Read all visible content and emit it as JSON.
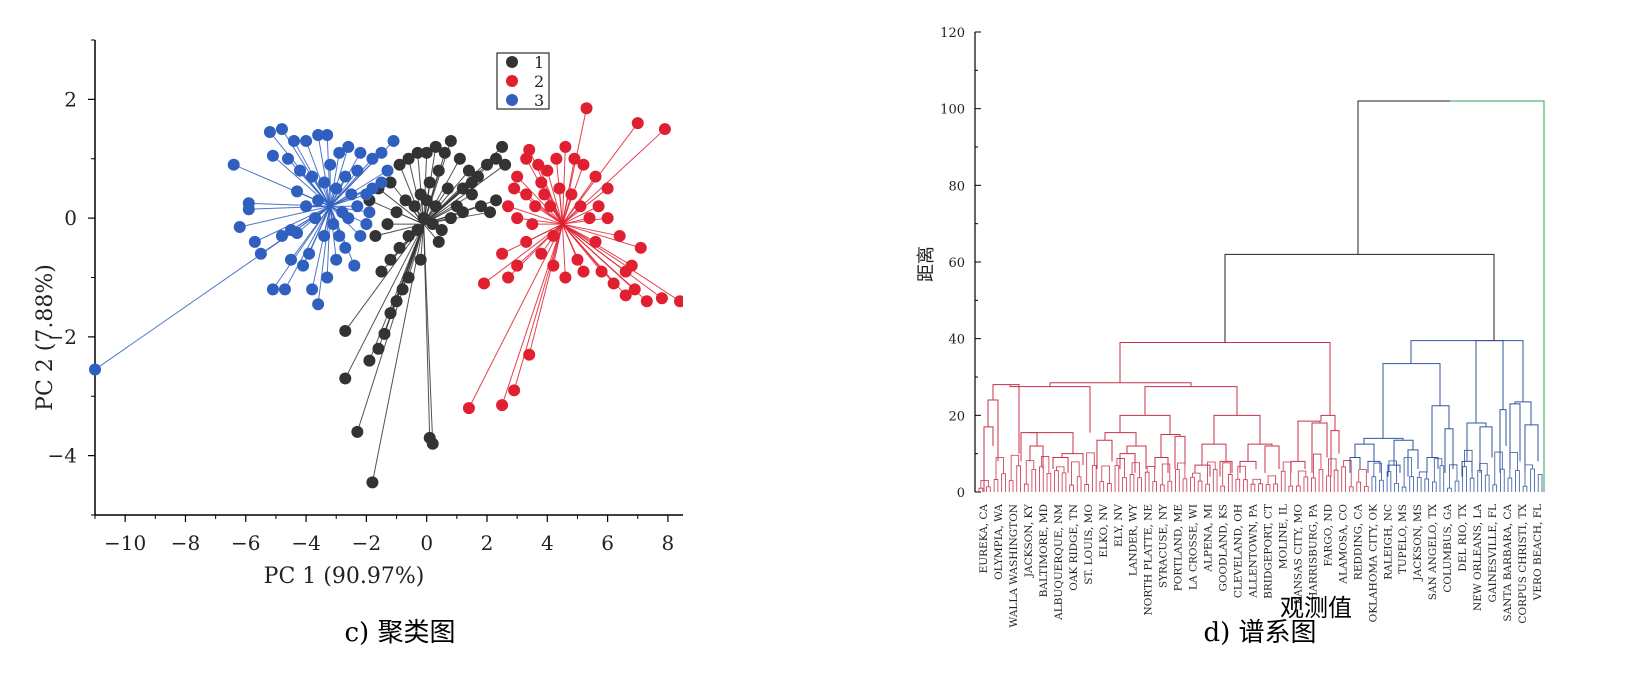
{
  "chart_data": [
    {
      "type": "scatter",
      "caption": "c) 聚类图",
      "xlabel": "PC 1 (90.97%)",
      "ylabel": "PC 2 (7.88%)",
      "xlim": [
        -11,
        8.5
      ],
      "ylim": [
        -5,
        3
      ],
      "xticks": [
        -10,
        -8,
        -6,
        -4,
        -2,
        0,
        2,
        4,
        6,
        8
      ],
      "yticks": [
        -4,
        -2,
        0,
        2
      ],
      "legend_position": "top-center",
      "grid": false,
      "colors": {
        "1": "#333333",
        "2": "#e02030",
        "3": "#2f5fbf"
      },
      "series": [
        {
          "name": "1",
          "color": "#333333",
          "centroid": [
            -0.1,
            -0.1
          ],
          "points": [
            [
              -1.8,
              -4.45
            ],
            [
              -2.3,
              -3.6
            ],
            [
              -2.7,
              -2.7
            ],
            [
              -2.7,
              -1.9
            ],
            [
              -1.9,
              -2.4
            ],
            [
              -1.6,
              -2.2
            ],
            [
              -1.4,
              -1.95
            ],
            [
              -1.2,
              -1.6
            ],
            [
              -1.0,
              -1.4
            ],
            [
              -0.8,
              -1.2
            ],
            [
              -0.6,
              -1.0
            ],
            [
              -0.2,
              -0.7
            ],
            [
              0.1,
              -3.7
            ],
            [
              0.2,
              -3.8
            ],
            [
              0.4,
              -0.4
            ],
            [
              -1.5,
              -0.9
            ],
            [
              -1.2,
              -0.7
            ],
            [
              -0.9,
              -0.5
            ],
            [
              -0.6,
              -0.3
            ],
            [
              -1.7,
              -0.3
            ],
            [
              -1.3,
              -0.1
            ],
            [
              -1.0,
              0.1
            ],
            [
              -0.7,
              0.3
            ],
            [
              -1.9,
              0.3
            ],
            [
              -1.6,
              0.5
            ],
            [
              -1.2,
              0.6
            ],
            [
              -0.9,
              0.9
            ],
            [
              -0.6,
              1.0
            ],
            [
              -0.3,
              1.1
            ],
            [
              0.0,
              1.1
            ],
            [
              0.3,
              1.2
            ],
            [
              0.6,
              1.1
            ],
            [
              0.8,
              1.3
            ],
            [
              1.1,
              1.0
            ],
            [
              1.4,
              0.8
            ],
            [
              1.7,
              0.7
            ],
            [
              2.0,
              0.9
            ],
            [
              2.3,
              1.0
            ],
            [
              2.5,
              1.2
            ],
            [
              2.6,
              0.9
            ],
            [
              1.2,
              0.5
            ],
            [
              1.5,
              0.4
            ],
            [
              1.8,
              0.2
            ],
            [
              2.1,
              0.1
            ],
            [
              2.3,
              0.3
            ],
            [
              1.0,
              0.2
            ],
            [
              0.7,
              0.5
            ],
            [
              0.4,
              0.8
            ],
            [
              0.1,
              0.6
            ],
            [
              -0.2,
              0.4
            ],
            [
              -0.4,
              0.2
            ],
            [
              -0.1,
              0.0
            ],
            [
              0.2,
              -0.1
            ],
            [
              0.5,
              -0.2
            ],
            [
              0.8,
              0.0
            ],
            [
              1.2,
              0.1
            ],
            [
              1.5,
              0.6
            ],
            [
              -0.3,
              -0.2
            ],
            [
              0.0,
              0.3
            ],
            [
              0.3,
              0.2
            ]
          ]
        },
        {
          "name": "2",
          "color": "#e02030",
          "centroid": [
            4.5,
            -0.1
          ],
          "points": [
            [
              1.4,
              -3.2
            ],
            [
              2.5,
              -3.15
            ],
            [
              2.9,
              -2.9
            ],
            [
              3.4,
              -2.3
            ],
            [
              1.9,
              -1.1
            ],
            [
              2.5,
              -0.6
            ],
            [
              3.0,
              -0.8
            ],
            [
              2.7,
              -1.0
            ],
            [
              3.3,
              -0.4
            ],
            [
              3.8,
              -0.6
            ],
            [
              4.2,
              -0.8
            ],
            [
              4.6,
              -1.0
            ],
            [
              5.0,
              -0.7
            ],
            [
              5.2,
              -0.9
            ],
            [
              5.8,
              -0.9
            ],
            [
              6.2,
              -1.1
            ],
            [
              6.6,
              -0.9
            ],
            [
              6.6,
              -1.3
            ],
            [
              6.9,
              -1.2
            ],
            [
              7.3,
              -1.4
            ],
            [
              7.8,
              -1.35
            ],
            [
              8.4,
              -1.4
            ],
            [
              6.8,
              -0.8
            ],
            [
              7.1,
              -0.5
            ],
            [
              6.4,
              -0.3
            ],
            [
              6.0,
              0.0
            ],
            [
              5.7,
              0.2
            ],
            [
              6.0,
              0.5
            ],
            [
              5.6,
              0.7
            ],
            [
              5.2,
              0.9
            ],
            [
              4.9,
              1.0
            ],
            [
              4.6,
              1.2
            ],
            [
              4.3,
              1.0
            ],
            [
              4.0,
              0.8
            ],
            [
              3.7,
              0.9
            ],
            [
              3.3,
              1.0
            ],
            [
              3.0,
              0.7
            ],
            [
              3.3,
              0.4
            ],
            [
              3.6,
              0.2
            ],
            [
              3.9,
              0.4
            ],
            [
              4.1,
              0.2
            ],
            [
              4.4,
              0.5
            ],
            [
              4.8,
              0.4
            ],
            [
              5.1,
              0.2
            ],
            [
              5.4,
              0.0
            ],
            [
              5.6,
              -0.4
            ],
            [
              2.7,
              0.2
            ],
            [
              2.9,
              0.5
            ],
            [
              3.0,
              0.0
            ],
            [
              3.5,
              -0.1
            ],
            [
              4.2,
              -0.3
            ],
            [
              5.3,
              1.85
            ],
            [
              7.0,
              1.6
            ],
            [
              7.9,
              1.5
            ],
            [
              3.4,
              1.15
            ],
            [
              3.8,
              0.6
            ]
          ]
        },
        {
          "name": "3",
          "color": "#2f5fbf",
          "centroid": [
            -3.2,
            0.2
          ],
          "points": [
            [
              -11.0,
              -2.55
            ],
            [
              -6.4,
              0.9
            ],
            [
              -5.9,
              0.25
            ],
            [
              -5.9,
              0.15
            ],
            [
              -6.2,
              -0.15
            ],
            [
              -5.7,
              -0.4
            ],
            [
              -5.5,
              -0.6
            ],
            [
              -5.1,
              -1.2
            ],
            [
              -4.7,
              -1.2
            ],
            [
              -4.5,
              -0.7
            ],
            [
              -4.8,
              -0.3
            ],
            [
              -4.5,
              -0.2
            ],
            [
              -4.3,
              -0.25
            ],
            [
              -4.1,
              -0.8
            ],
            [
              -3.9,
              -0.6
            ],
            [
              -3.6,
              -1.45
            ],
            [
              -3.8,
              -1.2
            ],
            [
              -3.3,
              -1.0
            ],
            [
              -3.0,
              -0.7
            ],
            [
              -2.7,
              -0.5
            ],
            [
              -2.4,
              -0.8
            ],
            [
              -2.2,
              -0.3
            ],
            [
              -2.0,
              -0.1
            ],
            [
              -2.3,
              0.2
            ],
            [
              -2.0,
              0.4
            ],
            [
              -1.8,
              0.5
            ],
            [
              -1.5,
              0.6
            ],
            [
              -1.3,
              0.8
            ],
            [
              -1.1,
              1.3
            ],
            [
              -1.5,
              1.1
            ],
            [
              -1.8,
              1.0
            ],
            [
              -2.2,
              1.1
            ],
            [
              -2.6,
              1.2
            ],
            [
              -2.9,
              1.1
            ],
            [
              -3.3,
              1.4
            ],
            [
              -3.6,
              1.4
            ],
            [
              -4.0,
              1.3
            ],
            [
              -4.4,
              1.3
            ],
            [
              -4.8,
              1.5
            ],
            [
              -5.2,
              1.45
            ],
            [
              -5.1,
              1.05
            ],
            [
              -4.6,
              1.0
            ],
            [
              -4.2,
              0.8
            ],
            [
              -3.8,
              0.7
            ],
            [
              -3.4,
              0.6
            ],
            [
              -3.0,
              0.5
            ],
            [
              -2.7,
              0.7
            ],
            [
              -2.5,
              0.4
            ],
            [
              -2.8,
              0.1
            ],
            [
              -3.1,
              -0.1
            ],
            [
              -3.4,
              -0.3
            ],
            [
              -3.7,
              0.0
            ],
            [
              -4.0,
              0.2
            ],
            [
              -4.3,
              0.45
            ],
            [
              -3.6,
              0.3
            ],
            [
              -2.9,
              -0.3
            ],
            [
              -2.6,
              0.0
            ],
            [
              -3.2,
              0.9
            ],
            [
              -2.3,
              0.8
            ],
            [
              -1.9,
              0.1
            ]
          ]
        }
      ]
    },
    {
      "type": "dendrogram",
      "caption": "d) 谱系图",
      "ylabel": "距离",
      "xlabel": "观测值",
      "ylim": [
        0,
        120
      ],
      "yticks": [
        0,
        20,
        40,
        60,
        80,
        100,
        120
      ],
      "leaf_labels": [
        "EUREKA, CA",
        "OLYMPIA, WA",
        "WALLA WASHINGTON",
        "JACKSON, KY",
        "BALTIMORE, MD",
        "ALBUQUERQUE, NM",
        "OAK RIDGE, TN",
        "ST. LOUIS, MO",
        "ELKO, NV",
        "ELY, NV",
        "LANDER, WY",
        "NORTH PLATTE, NE",
        "SYRACUSE, NY",
        "PORTLAND, ME",
        "LA CROSSE, WI",
        "ALPENA, MI",
        "GOODLAND, KS",
        "CLEVELAND, OH",
        "ALLENTOWN, PA",
        "BRIDGEPORT, CT",
        "MOLINE, IL",
        "KANSAS CITY, MO",
        "HARRISBURG, PA",
        "FARGO, ND",
        "ALAMOSA, CO",
        "REDDING, CA",
        "OKLAHOMA CITY, OK",
        "RALEIGH, NC",
        "TUPELO, MS",
        "JACKSON, MS",
        "SAN ANGELO, TX",
        "COLUMBUS, GA",
        "DEL RIO, TX",
        "NEW ORLEANS, LA",
        "GAINESVILLE, FL",
        "SANTA BARBARA, CA",
        "CORPUS CHRISTI, TX",
        "VERO BEACH, FL"
      ],
      "merge_heights": {
        "root": 102,
        "left_main": 62,
        "red_cluster": 39,
        "red_sub_a": 28.5,
        "red_sub_b": 27.5,
        "red_sub_c": 19.5,
        "blue_cluster": 39.5,
        "blue_sub_a": 33.5,
        "blue_sub_b": 22.5,
        "blue_sub_c": 23
      },
      "colors": {
        "red_cluster": "#c8324a",
        "blue_cluster": "#3355a0",
        "root_branch": "#222222",
        "right_branch": "#2aa055"
      }
    }
  ]
}
